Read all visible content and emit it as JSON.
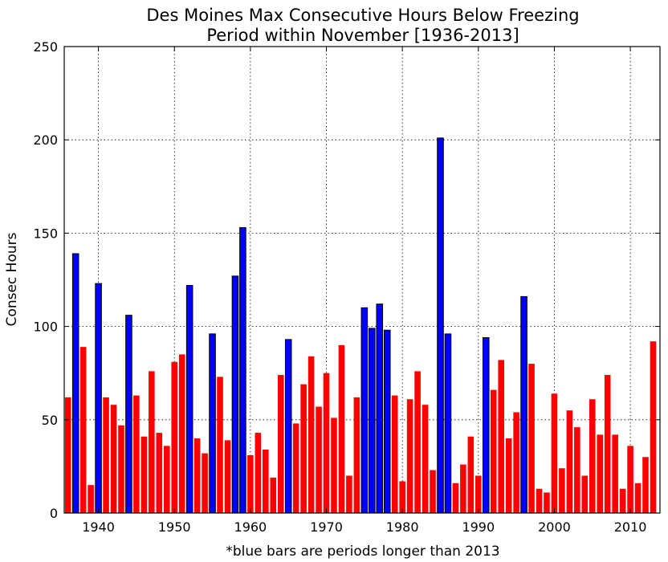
{
  "chart_data": {
    "type": "bar",
    "title": "Des Moines Max Consecutive Hours Below Freezing",
    "subtitle": "Period within November [1936-2013]",
    "xlabel": "*blue bars are periods longer than 2013",
    "ylabel": "Consec Hours",
    "xlim": [
      1935.5,
      2013.9
    ],
    "ylim": [
      0,
      250
    ],
    "xticks": [
      1940,
      1950,
      1960,
      1970,
      1980,
      1990,
      2000,
      2010
    ],
    "yticks": [
      0,
      50,
      100,
      150,
      200,
      250
    ],
    "grid": true,
    "colors": {
      "longer_than_2013": "#0000ff",
      "other": "#ff0000"
    },
    "threshold_year": 2013,
    "x": [
      1936,
      1937,
      1938,
      1939,
      1940,
      1941,
      1942,
      1943,
      1944,
      1945,
      1946,
      1947,
      1948,
      1949,
      1950,
      1951,
      1952,
      1953,
      1954,
      1955,
      1956,
      1957,
      1958,
      1959,
      1960,
      1961,
      1962,
      1963,
      1964,
      1965,
      1966,
      1967,
      1968,
      1969,
      1970,
      1971,
      1972,
      1973,
      1974,
      1975,
      1976,
      1977,
      1978,
      1979,
      1980,
      1981,
      1982,
      1983,
      1984,
      1985,
      1986,
      1987,
      1988,
      1989,
      1990,
      1991,
      1992,
      1993,
      1994,
      1995,
      1996,
      1997,
      1998,
      1999,
      2000,
      2001,
      2002,
      2003,
      2004,
      2005,
      2006,
      2007,
      2008,
      2009,
      2010,
      2011,
      2012,
      2013
    ],
    "values": [
      62,
      139,
      89,
      15,
      123,
      62,
      58,
      47,
      106,
      63,
      41,
      76,
      43,
      36,
      81,
      85,
      122,
      40,
      32,
      96,
      73,
      39,
      127,
      153,
      31,
      43,
      34,
      19,
      74,
      93,
      48,
      69,
      84,
      57,
      75,
      51,
      90,
      20,
      62,
      110,
      99,
      112,
      98,
      63,
      17,
      61,
      76,
      58,
      23,
      201,
      96,
      16,
      26,
      41,
      20,
      94,
      66,
      82,
      40,
      54,
      116,
      80,
      13,
      11,
      64,
      24,
      55,
      46,
      20,
      61,
      42,
      74,
      42,
      13,
      36,
      16,
      30,
      92
    ]
  }
}
